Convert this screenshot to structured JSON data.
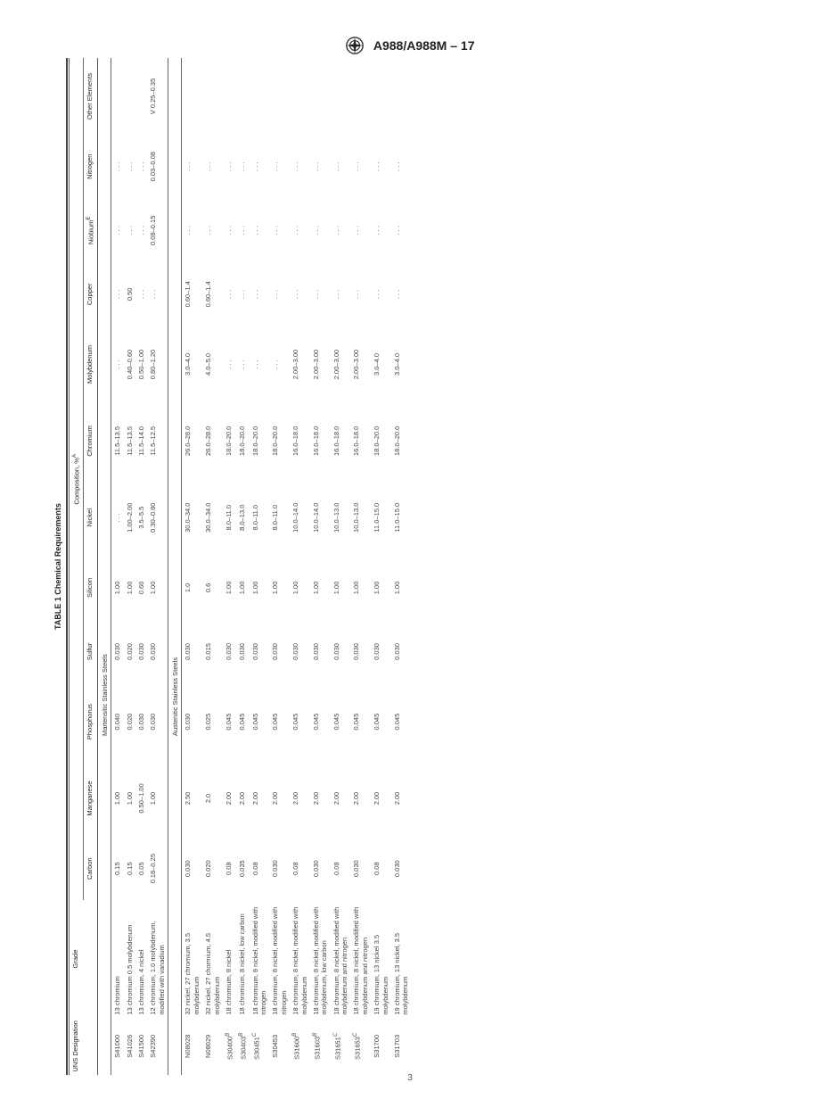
{
  "doc": {
    "standard": "A988/A988M – 17",
    "table_title": "TABLE 1 Chemical Requirements",
    "composition_label": "Composition, %",
    "composition_super": "A",
    "page_number": "3"
  },
  "columns": [
    "UNS Designation",
    "Grade",
    "Carbon",
    "Manganese",
    "Phosphorus",
    "Sulfur",
    "Silicon",
    "Nickel",
    "Chromium",
    "Molybdenum",
    "Copper",
    "Niobium",
    "Nitrogen",
    "Other Elements"
  ],
  "niobium_super": "E",
  "sections": [
    {
      "title": "Martensitic Stainless Steels",
      "rows": [
        {
          "uns": "S41000",
          "grade": "13 chromium",
          "c": "0.15",
          "mn": "1.00",
          "p": "0.040",
          "s": "0.030",
          "si": "1.00",
          "ni": ". . .",
          "cr": "11.5–13.5",
          "mo": ". . .",
          "cu": ". . .",
          "nb": ". . .",
          "n": ". . .",
          "other": ""
        },
        {
          "uns": "S41026",
          "grade": "13 chromium 0.5 molybdenum",
          "c": "0.15",
          "mn": "1.00",
          "p": "0.020",
          "s": "0.020",
          "si": "1.00",
          "ni": "1.00–2.00",
          "cr": "11.5–13.5",
          "mo": "0.40–0.60",
          "cu": "0.50",
          "nb": ". . .",
          "n": ". . .",
          "other": ""
        },
        {
          "uns": "S41500",
          "grade": "13 chromium, 4 nickel",
          "c": "0.05",
          "mn": "0.50–1.00",
          "p": "0.030",
          "s": "0.030",
          "si": "0.60",
          "ni": "3.5–5.5",
          "cr": "11.5–14.0",
          "mo": "0.50–1.00",
          "cu": ". . .",
          "nb": ". . .",
          "n": ". . .",
          "other": ""
        },
        {
          "uns": "S42390",
          "grade": "12 chromium, 1.0 molybdenum, modified with vanadium",
          "c": "0.18–0.25",
          "mn": "1.00",
          "p": "0.030",
          "s": "0.030",
          "si": "1.00",
          "ni": "0.30–0.80",
          "cr": "11.5–12.5",
          "mo": "0.80–1.20",
          "cu": ". . .",
          "nb": "0.08–0.15",
          "n": "0.03–0.08",
          "other": "V 0.25–0.35"
        }
      ]
    },
    {
      "title": "Austenitic Stainless Steels",
      "rows": [
        {
          "uns": "N08028",
          "grade": "32 nickel, 27 chromium, 3.5 molybdenum",
          "c": "0.030",
          "mn": "2.50",
          "p": "0.030",
          "s": "0.030",
          "si": "1.0",
          "ni": "30.0–34.0",
          "cr": "26.0–28.0",
          "mo": "3.0–4.0",
          "cu": "0.60–1.4",
          "nb": ". . .",
          "n": ". . .",
          "other": ""
        },
        {
          "uns": "N08029",
          "grade": "32 nickel, 27 chormium, 4.5 molybdenum",
          "c": "0.020",
          "mn": "2.0",
          "p": "0.025",
          "s": "0.015",
          "si": "0.6",
          "ni": "30.0–34.0",
          "cr": "26.0–28.0",
          "mo": "4.0–5.0",
          "cu": "0.60–1.4",
          "nb": ". . .",
          "n": ". . .",
          "other": ""
        },
        {
          "uns": "S30400",
          "sup": "B",
          "grade": "18 chromium, 8 nickel",
          "c": "0.08",
          "mn": "2.00",
          "p": "0.045",
          "s": "0.030",
          "si": "1.00",
          "ni": "8.0–11.0",
          "cr": "18.0–20.0",
          "mo": ". . .",
          "cu": ". . .",
          "nb": ". . .",
          "n": ". . .",
          "other": ""
        },
        {
          "uns": "S30403",
          "sup": "B",
          "grade": "18 chromium, 8 nickel, low carbon",
          "c": "0.035",
          "mn": "2.00",
          "p": "0.045",
          "s": "0.030",
          "si": "1.00",
          "ni": "8.0–13.0",
          "cr": "18.0–20.0",
          "mo": ". . .",
          "cu": ". . .",
          "nb": ". . .",
          "n": ". . .",
          "other": ""
        },
        {
          "uns": "S30451",
          "sup": "C",
          "grade": "18 chromium, 8 nickel, modified with nitrogen",
          "c": "0.08",
          "mn": "2.00",
          "p": "0.045",
          "s": "0.030",
          "si": "1.00",
          "ni": "8.0–11.0",
          "cr": "18.0–20.0",
          "mo": ". . .",
          "cu": ". . .",
          "nb": ". . .",
          "n": ". . .",
          "other": ""
        },
        {
          "uns": "S30453",
          "grade": "18 chromium, 8 nickel, modified with nitrogen",
          "c": "0.030",
          "mn": "2.00",
          "p": "0.045",
          "s": "0.030",
          "si": "1.00",
          "ni": "8.0–11.0",
          "cr": "18.0–20.0",
          "mo": ". . .",
          "cu": ". . .",
          "nb": ". . .",
          "n": ". . .",
          "other": ""
        },
        {
          "uns": "S31600",
          "sup": "B",
          "grade": "18 chromium, 8 nickel, modified with molybdenum",
          "c": "0.08",
          "mn": "2.00",
          "p": "0.045",
          "s": "0.030",
          "si": "1.00",
          "ni": "10.0–14.0",
          "cr": "16.0–18.0",
          "mo": "2.00–3.00",
          "cu": ". . .",
          "nb": ". . .",
          "n": ". . .",
          "other": ""
        },
        {
          "uns": "S31603",
          "sup": "B",
          "grade": "18 chromium, 8 nickel, modified with molybdenum, low carbon",
          "c": "0.030",
          "mn": "2.00",
          "p": "0.045",
          "s": "0.030",
          "si": "1.00",
          "ni": "10.0–14.0",
          "cr": "16.0–18.0",
          "mo": "2.00–3.00",
          "cu": ". . .",
          "nb": ". . .",
          "n": ". . .",
          "other": ""
        },
        {
          "uns": "S31651",
          "sup": "C",
          "grade": "18 chromium, 8 nickel, modified with molybdenum and nitrogen",
          "c": "0.08",
          "mn": "2.00",
          "p": "0.045",
          "s": "0.030",
          "si": "1.00",
          "ni": "10.0–13.0",
          "cr": "16.0–18.0",
          "mo": "2.00–3.00",
          "cu": ". . .",
          "nb": ". . .",
          "n": ". . .",
          "other": ""
        },
        {
          "uns": "S31653",
          "sup": "C",
          "grade": "18 chromium, 8 nickel, modified with molybdenum and nitrogen",
          "c": "0.030",
          "mn": "2.00",
          "p": "0.045",
          "s": "0.030",
          "si": "1.00",
          "ni": "10.0–13.0",
          "cr": "16.0–18.0",
          "mo": "2.00–3.00",
          "cu": ". . .",
          "nb": ". . .",
          "n": ". . .",
          "other": ""
        },
        {
          "uns": "S31700",
          "grade": "19 chromium, 13 nickel 3.5 molybdenum",
          "c": "0.08",
          "mn": "2.00",
          "p": "0.045",
          "s": "0.030",
          "si": "1.00",
          "ni": "11.0–15.0",
          "cr": "18.0–20.0",
          "mo": "3.0–4.0",
          "cu": ". . .",
          "nb": ". . .",
          "n": ". . .",
          "other": ""
        },
        {
          "uns": "S31703",
          "grade": "19 chromium, 13 nickel, 3.5 molybdenum",
          "c": "0.030",
          "mn": "2.00",
          "p": "0.045",
          "s": "0.030",
          "si": "1.00",
          "ni": "11.0–15.0",
          "cr": "18.0–20.0",
          "mo": "3.0–4.0",
          "cu": ". . .",
          "nb": ". . .",
          "n": ". . .",
          "other": ""
        }
      ]
    }
  ]
}
